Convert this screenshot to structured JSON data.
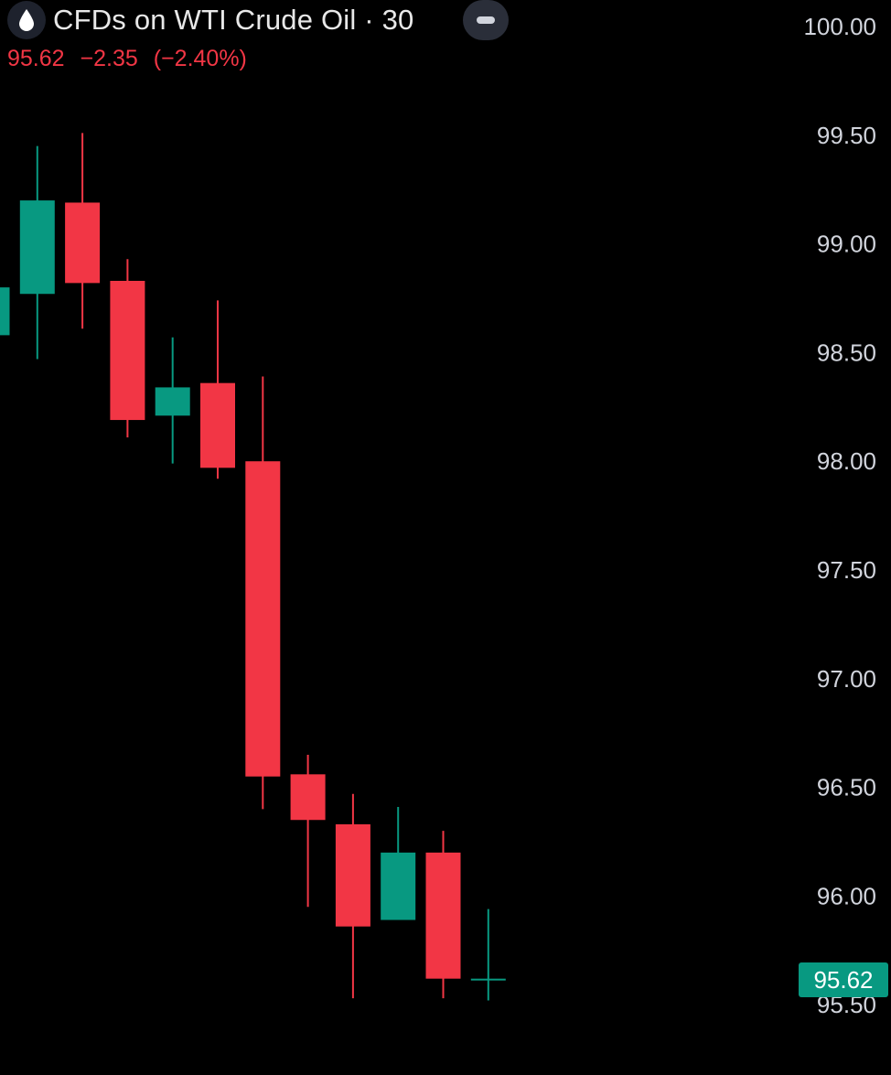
{
  "header": {
    "icon": "oil-drop-icon",
    "title": "CFDs on WTI Crude Oil · 30",
    "price": "95.62",
    "change": "−2.35",
    "change_pct": "(−2.40%)"
  },
  "colors": {
    "up": "#089981",
    "down": "#f23645",
    "background": "#000000",
    "text": "#d1d4dc"
  },
  "chart_data": {
    "type": "candlestick",
    "interval": "30",
    "y_ticks": [
      "95.50",
      "96.00",
      "96.50",
      "97.00",
      "97.50",
      "98.00",
      "98.50",
      "99.00",
      "99.50",
      "100.00"
    ],
    "ylim": [
      95.5,
      100.0
    ],
    "last_price": "95.62",
    "candles": [
      {
        "open": 98.58,
        "high": 98.85,
        "low": 98.5,
        "close": 98.8
      },
      {
        "open": 98.77,
        "high": 99.45,
        "low": 98.47,
        "close": 99.2
      },
      {
        "open": 99.19,
        "high": 99.51,
        "low": 98.61,
        "close": 98.82
      },
      {
        "open": 98.83,
        "high": 98.93,
        "low": 98.11,
        "close": 98.19
      },
      {
        "open": 98.21,
        "high": 98.57,
        "low": 97.99,
        "close": 98.34
      },
      {
        "open": 98.36,
        "high": 98.74,
        "low": 97.92,
        "close": 97.97
      },
      {
        "open": 98.0,
        "high": 98.39,
        "low": 96.4,
        "close": 96.55
      },
      {
        "open": 96.56,
        "high": 96.65,
        "low": 95.95,
        "close": 96.35
      },
      {
        "open": 96.33,
        "high": 96.47,
        "low": 95.53,
        "close": 95.86
      },
      {
        "open": 95.89,
        "high": 96.41,
        "low": 95.89,
        "close": 96.2
      },
      {
        "open": 96.2,
        "high": 96.3,
        "low": 95.53,
        "close": 95.62
      },
      {
        "open": 95.62,
        "high": 95.94,
        "low": 95.52,
        "close": 95.62
      }
    ]
  }
}
